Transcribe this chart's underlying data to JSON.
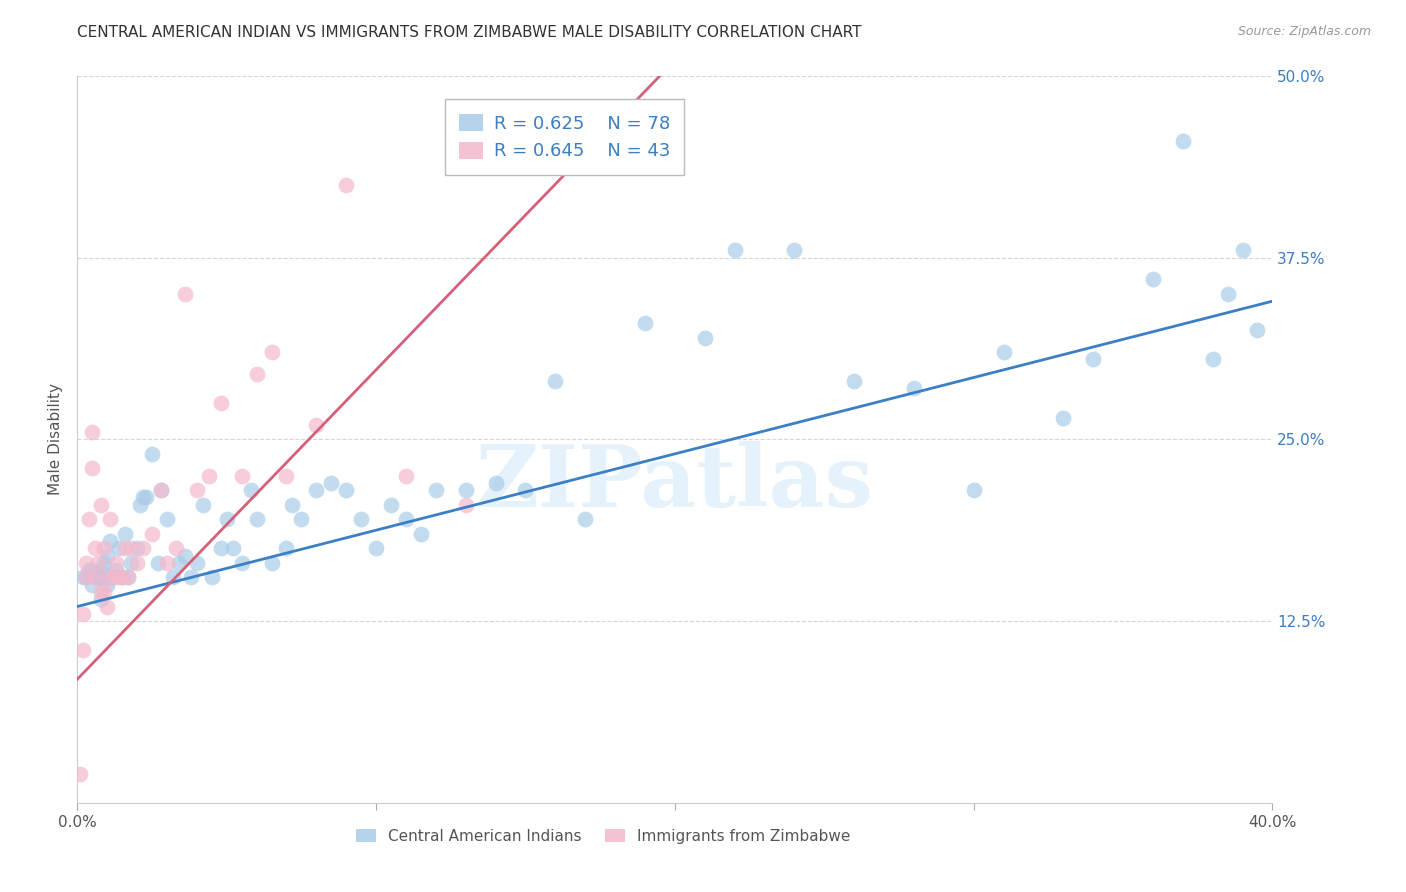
{
  "title": "CENTRAL AMERICAN INDIAN VS IMMIGRANTS FROM ZIMBABWE MALE DISABILITY CORRELATION CHART",
  "source": "Source: ZipAtlas.com",
  "ylabel": "Male Disability",
  "xlim": [
    0.0,
    0.4
  ],
  "ylim": [
    0.0,
    0.5
  ],
  "yticks": [
    0.0,
    0.125,
    0.25,
    0.375,
    0.5
  ],
  "ytick_labels": [
    "",
    "12.5%",
    "25.0%",
    "37.5%",
    "50.0%"
  ],
  "xtick_positions": [
    0.0,
    0.1,
    0.2,
    0.3,
    0.4
  ],
  "xtick_labels": [
    "0.0%",
    "",
    "",
    "",
    "40.0%"
  ],
  "blue_R": "0.625",
  "blue_N": "78",
  "pink_R": "0.645",
  "pink_N": "43",
  "blue_label": "Central American Indians",
  "pink_label": "Immigrants from Zimbabwe",
  "blue_color": "#a8cce8",
  "pink_color": "#f4b8cc",
  "blue_line_color": "#3b7fc4",
  "pink_line_color": "#d4607a",
  "blue_text_color": "#3b7fc4",
  "watermark": "ZIPatlas",
  "grid_color": "#d5d5d5",
  "background_color": "#ffffff",
  "blue_x": [
    0.002,
    0.003,
    0.004,
    0.005,
    0.005,
    0.006,
    0.007,
    0.007,
    0.008,
    0.008,
    0.009,
    0.009,
    0.01,
    0.01,
    0.011,
    0.011,
    0.012,
    0.013,
    0.014,
    0.015,
    0.016,
    0.017,
    0.018,
    0.02,
    0.021,
    0.022,
    0.023,
    0.025,
    0.027,
    0.028,
    0.03,
    0.032,
    0.034,
    0.036,
    0.038,
    0.04,
    0.042,
    0.045,
    0.048,
    0.05,
    0.052,
    0.055,
    0.058,
    0.06,
    0.065,
    0.07,
    0.072,
    0.075,
    0.08,
    0.085,
    0.09,
    0.095,
    0.1,
    0.105,
    0.11,
    0.115,
    0.12,
    0.13,
    0.14,
    0.15,
    0.16,
    0.17,
    0.19,
    0.21,
    0.22,
    0.24,
    0.26,
    0.28,
    0.3,
    0.31,
    0.33,
    0.34,
    0.36,
    0.37,
    0.38,
    0.385,
    0.39,
    0.395
  ],
  "blue_y": [
    0.155,
    0.155,
    0.16,
    0.15,
    0.16,
    0.155,
    0.155,
    0.155,
    0.14,
    0.16,
    0.155,
    0.165,
    0.15,
    0.17,
    0.155,
    0.18,
    0.155,
    0.16,
    0.175,
    0.155,
    0.185,
    0.155,
    0.165,
    0.175,
    0.205,
    0.21,
    0.21,
    0.24,
    0.165,
    0.215,
    0.195,
    0.155,
    0.165,
    0.17,
    0.155,
    0.165,
    0.205,
    0.155,
    0.175,
    0.195,
    0.175,
    0.165,
    0.215,
    0.195,
    0.165,
    0.175,
    0.205,
    0.195,
    0.215,
    0.22,
    0.215,
    0.195,
    0.175,
    0.205,
    0.195,
    0.185,
    0.215,
    0.215,
    0.22,
    0.215,
    0.29,
    0.195,
    0.33,
    0.32,
    0.38,
    0.38,
    0.29,
    0.285,
    0.215,
    0.31,
    0.265,
    0.305,
    0.36,
    0.455,
    0.305,
    0.35,
    0.38,
    0.325
  ],
  "pink_x": [
    0.001,
    0.002,
    0.003,
    0.003,
    0.004,
    0.005,
    0.005,
    0.006,
    0.006,
    0.007,
    0.008,
    0.008,
    0.009,
    0.009,
    0.01,
    0.01,
    0.011,
    0.012,
    0.013,
    0.014,
    0.015,
    0.016,
    0.017,
    0.018,
    0.02,
    0.022,
    0.025,
    0.028,
    0.03,
    0.033,
    0.036,
    0.04,
    0.044,
    0.048,
    0.055,
    0.06,
    0.065,
    0.07,
    0.08,
    0.09,
    0.11,
    0.13,
    0.002
  ],
  "pink_y": [
    0.02,
    0.13,
    0.155,
    0.165,
    0.195,
    0.23,
    0.255,
    0.155,
    0.175,
    0.165,
    0.145,
    0.205,
    0.145,
    0.175,
    0.135,
    0.155,
    0.195,
    0.155,
    0.165,
    0.155,
    0.155,
    0.175,
    0.155,
    0.175,
    0.165,
    0.175,
    0.185,
    0.215,
    0.165,
    0.175,
    0.35,
    0.215,
    0.225,
    0.275,
    0.225,
    0.295,
    0.31,
    0.225,
    0.26,
    0.425,
    0.225,
    0.205,
    0.105
  ],
  "blue_trend_x": [
    0.0,
    0.4
  ],
  "blue_trend_y": [
    0.135,
    0.345
  ],
  "pink_trend_x": [
    0.0,
    0.195
  ],
  "pink_trend_y": [
    0.085,
    0.5
  ]
}
